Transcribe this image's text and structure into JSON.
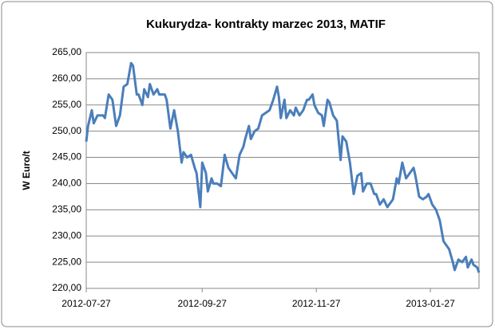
{
  "chart_data": {
    "type": "line",
    "title": "Kukurydza- kontrakty marzec 2013, MATIF",
    "y_label": "W Euro/t",
    "x": [
      "2012-07-27",
      "2012-07-28",
      "2012-07-30",
      "2012-07-31",
      "2012-08-02",
      "2012-08-05",
      "2012-08-06",
      "2012-08-08",
      "2012-08-10",
      "2012-08-12",
      "2012-08-14",
      "2012-08-16",
      "2012-08-18",
      "2012-08-20",
      "2012-08-21",
      "2012-08-23",
      "2012-08-24",
      "2012-08-26",
      "2012-08-27",
      "2012-08-29",
      "2012-08-30",
      "2012-09-01",
      "2012-09-03",
      "2012-09-04",
      "2012-09-07",
      "2012-09-08",
      "2012-09-10",
      "2012-09-12",
      "2012-09-14",
      "2012-09-16",
      "2012-09-17",
      "2012-09-19",
      "2012-09-21",
      "2012-09-23",
      "2012-09-24",
      "2012-09-26",
      "2012-09-27",
      "2012-09-29",
      "2012-09-30",
      "2012-10-02",
      "2012-10-03",
      "2012-10-05",
      "2012-10-07",
      "2012-10-09",
      "2012-10-11",
      "2012-10-13",
      "2012-10-15",
      "2012-10-17",
      "2012-10-19",
      "2012-10-20",
      "2012-10-22",
      "2012-10-23",
      "2012-10-25",
      "2012-10-27",
      "2012-10-29",
      "2012-10-31",
      "2012-11-02",
      "2012-11-04",
      "2012-11-06",
      "2012-11-07",
      "2012-11-08",
      "2012-11-10",
      "2012-11-11",
      "2012-11-13",
      "2012-11-15",
      "2012-11-16",
      "2012-11-18",
      "2012-11-20",
      "2012-11-22",
      "2012-11-23",
      "2012-11-25",
      "2012-11-26",
      "2012-11-28",
      "2012-11-30",
      "2012-12-01",
      "2012-12-03",
      "2012-12-04",
      "2012-12-06",
      "2012-12-08",
      "2012-12-10",
      "2012-12-11",
      "2012-12-13",
      "2012-12-15",
      "2012-12-17",
      "2012-12-19",
      "2012-12-21",
      "2012-12-22",
      "2012-12-24",
      "2012-12-26",
      "2012-12-28",
      "2012-12-29",
      "2012-12-31",
      "2013-01-02",
      "2013-01-04",
      "2013-01-05",
      "2013-01-07",
      "2013-01-09",
      "2013-01-10",
      "2013-01-12",
      "2013-01-14",
      "2013-01-16",
      "2013-01-18",
      "2013-01-19",
      "2013-01-21",
      "2013-01-23",
      "2013-01-25",
      "2013-01-26",
      "2013-01-28",
      "2013-01-30",
      "2013-02-01",
      "2013-02-03",
      "2013-02-04",
      "2013-02-06",
      "2013-02-08",
      "2013-02-09",
      "2013-02-11",
      "2013-02-13",
      "2013-02-15",
      "2013-02-16",
      "2013-02-18",
      "2013-02-19",
      "2013-02-21",
      "2013-02-22"
    ],
    "series": [
      {
        "name": "MATIF",
        "color": "#4a7ebb",
        "values": [
          248,
          251,
          254,
          251.5,
          253,
          253,
          252.5,
          257,
          256,
          251,
          253,
          258.5,
          259,
          263,
          262.5,
          257,
          257,
          255,
          258,
          256.5,
          259,
          257,
          258,
          257,
          257,
          256,
          250.5,
          254,
          250,
          244,
          246,
          245,
          245.5,
          243,
          242,
          235.5,
          244,
          242,
          238.5,
          241,
          240,
          240,
          239.5,
          245.5,
          243,
          242,
          241,
          245.5,
          247,
          248.5,
          251,
          248.5,
          250,
          250.5,
          253,
          253.5,
          254,
          256,
          258.5,
          256.5,
          252.5,
          256,
          252.5,
          254,
          253,
          254.5,
          253,
          254,
          256,
          256,
          257,
          255,
          253.5,
          253,
          251,
          256,
          255.5,
          253,
          252,
          244.5,
          249,
          248,
          244,
          238,
          241.5,
          242,
          238.5,
          240,
          240,
          238,
          238,
          236,
          237,
          235.5,
          236,
          237,
          241,
          240,
          244,
          241,
          242,
          243,
          241.5,
          237.5,
          237,
          237.5,
          238,
          236,
          235,
          233,
          229,
          228.5,
          227.5,
          225,
          223.5,
          225.5,
          225,
          226,
          224,
          225.5,
          224.5,
          224,
          223
        ]
      }
    ],
    "xlim": [
      "2012-07-27",
      "2013-02-22"
    ],
    "xticks": [
      "2012-07-27",
      "2012-09-27",
      "2012-11-27",
      "2013-01-27"
    ],
    "ylim": [
      220,
      265
    ],
    "yticks": [
      {
        "value": 220,
        "label": "220,00"
      },
      {
        "value": 225,
        "label": "225,00"
      },
      {
        "value": 230,
        "label": "230,00"
      },
      {
        "value": 235,
        "label": "235,00"
      },
      {
        "value": 240,
        "label": "240,00"
      },
      {
        "value": 245,
        "label": "245,00"
      },
      {
        "value": 250,
        "label": "250,00"
      },
      {
        "value": 255,
        "label": "255,00"
      },
      {
        "value": 260,
        "label": "260,00"
      },
      {
        "value": 265,
        "label": "265,00"
      }
    ],
    "grid": true
  }
}
